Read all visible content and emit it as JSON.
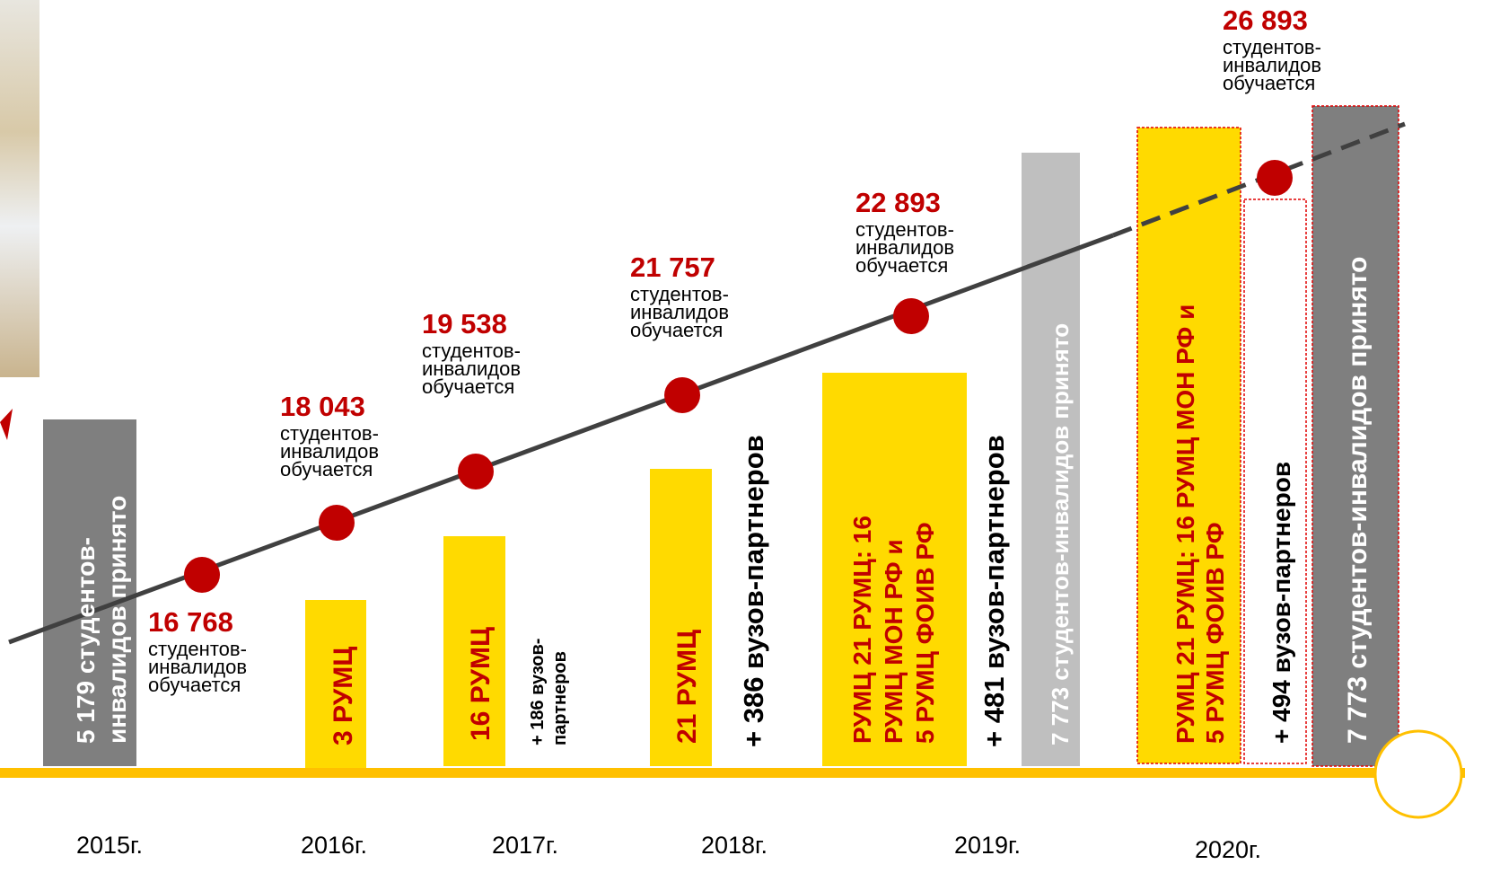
{
  "milestones": [
    {
      "number": "16 768",
      "caption": [
        "студентов-",
        "инвалидов",
        "обучается"
      ]
    },
    {
      "number": "18 043",
      "caption": [
        "студентов-",
        "инвалидов",
        "обучается"
      ]
    },
    {
      "number": "19 538",
      "caption": [
        "студентов-",
        "инвалидов",
        "обучается"
      ]
    },
    {
      "number": "21 757",
      "caption": [
        "студентов-",
        "инвалидов",
        "обучается"
      ]
    },
    {
      "number": "22 893",
      "caption": [
        "студентов-",
        "инвалидов",
        "обучается"
      ]
    },
    {
      "number": "26 893",
      "caption": [
        "студентов-",
        "инвалидов",
        "обучается"
      ]
    }
  ],
  "columns": [
    {
      "lines": [
        "5 179 студентов-",
        "инвалидов принято"
      ]
    },
    {
      "lines": [
        "3 РУМЦ"
      ]
    },
    {
      "lines": [
        "16 РУМЦ"
      ]
    },
    {
      "lines": [
        "+ 186 вузов-",
        "партнеров"
      ]
    },
    {
      "lines": [
        "21 РУМЦ"
      ]
    },
    {
      "lines": [
        "+ 386 вузов-партнеров"
      ]
    },
    {
      "lines": [
        "РУМЦ 21 РУМЦ: 16",
        "РУМЦ МОН РФ и",
        "5 РУМЦ ФОИВ РФ"
      ]
    },
    {
      "lines": [
        "+ 481 вузов-партнеров"
      ]
    },
    {
      "lines": [
        "7 773 студентов-инвалидов принято"
      ]
    },
    {
      "lines": [
        "РУМЦ 21 РУМЦ: 16 РУМЦ МОН РФ и",
        "5 РУМЦ ФОИВ РФ"
      ]
    },
    {
      "lines": [
        "+ 494 вузов-партнеров"
      ]
    },
    {
      "lines": [
        "7 773 студентов-инвалидов принято"
      ]
    }
  ],
  "years": [
    "2015г.",
    "2016г.",
    "2017г.",
    "2018г.",
    "2019г.",
    "2020г."
  ]
}
